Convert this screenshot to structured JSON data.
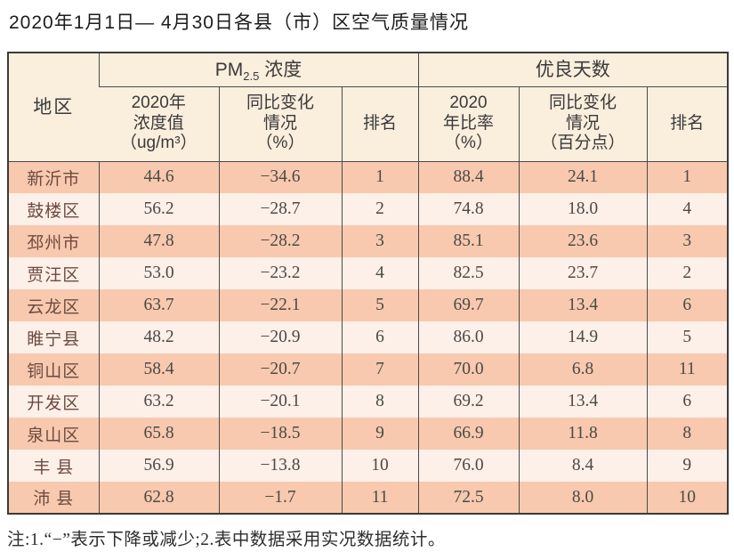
{
  "title": "2020年1月1日— 4月30日各县（市）区空气质量情况",
  "colors": {
    "row_odd": "#f8c9ae",
    "row_even": "#fdf0e8",
    "header_bg": "#faeedd",
    "border": "#4a4a4a",
    "outer_border": "#3a3a3a",
    "region_text": "#6d4a3f",
    "number_text": "#4a4a46",
    "header_text": "#3a3a3a",
    "title_text": "#1c1c1c"
  },
  "table": {
    "header": {
      "region": "地区",
      "pm_prefix": "PM",
      "pm_sub": "2.5",
      "pm_suffix": " 浓度",
      "good_days": "优良天数",
      "sub": [
        "2020年\n浓度值\n（ug/m³）",
        "同比变化\n情况\n（%）",
        "排名",
        "2020\n年比率\n（%）",
        "同比变化\n情况\n（百分点）",
        "排名"
      ]
    },
    "cell_names": [
      "region-cell",
      "pm-value-cell",
      "pm-change-cell",
      "pm-rank-cell",
      "good-rate-cell",
      "good-change-cell",
      "good-rank-cell"
    ],
    "rows": [
      [
        "新沂市",
        "44.6",
        "−34.6",
        "1",
        "88.4",
        "24.1",
        "1"
      ],
      [
        "鼓楼区",
        "56.2",
        "−28.7",
        "2",
        "74.8",
        "18.0",
        "4"
      ],
      [
        "邳州市",
        "47.8",
        "−28.2",
        "3",
        "85.1",
        "23.6",
        "3"
      ],
      [
        "贾汪区",
        "53.0",
        "−23.2",
        "4",
        "82.5",
        "23.7",
        "2"
      ],
      [
        "云龙区",
        "63.7",
        "−22.1",
        "5",
        "69.7",
        "13.4",
        "6"
      ],
      [
        "睢宁县",
        "48.2",
        "−20.9",
        "6",
        "86.0",
        "14.9",
        "5"
      ],
      [
        "铜山区",
        "58.4",
        "−20.7",
        "7",
        "70.0",
        "6.8",
        "11"
      ],
      [
        "开发区",
        "63.2",
        "−20.1",
        "8",
        "69.2",
        "13.4",
        "6"
      ],
      [
        "泉山区",
        "65.8",
        "−18.5",
        "9",
        "66.9",
        "11.8",
        "8"
      ],
      [
        "丰 县",
        "56.9",
        "−13.8",
        "10",
        "76.0",
        "8.4",
        "9"
      ],
      [
        "沛 县",
        "62.8",
        "−1.7",
        "11",
        "72.5",
        "8.0",
        "10"
      ]
    ]
  },
  "footnote": "注:1.“−”表示下降或减少;2.表中数据采用实况数据统计。"
}
